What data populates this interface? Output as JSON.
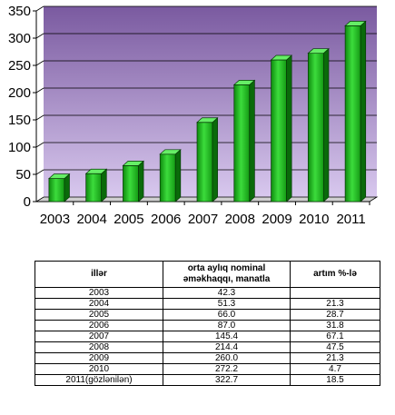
{
  "chart_data": {
    "type": "bar",
    "categories": [
      "2003",
      "2004",
      "2005",
      "2006",
      "2007",
      "2008",
      "2009",
      "2010",
      "2011"
    ],
    "values": [
      42.3,
      51.3,
      66.0,
      87.0,
      145.4,
      214.4,
      260.0,
      272.2,
      322.7
    ],
    "ylim": [
      0,
      350
    ],
    "yticks": [
      "0",
      "50",
      "100",
      "150",
      "200",
      "250",
      "300",
      "350"
    ],
    "grid": true,
    "colors": {
      "bar": "#22c022",
      "bar_top": "#66ee66",
      "bar_side": "#0a6a0a",
      "plot_bg_top": "#7a5aa0",
      "plot_bg_bottom": "#d8c8ee"
    }
  },
  "table": {
    "headers": [
      "illər",
      "orta aylıq nominal əməkhaqqı, manatla",
      "artım %-lə"
    ],
    "rows": [
      [
        "2003",
        "42.3",
        ""
      ],
      [
        "2004",
        "51.3",
        "21.3"
      ],
      [
        "2005",
        "66.0",
        "28.7"
      ],
      [
        "2006",
        "87.0",
        "31.8"
      ],
      [
        "2007",
        "145.4",
        "67.1"
      ],
      [
        "2008",
        "214.4",
        "47.5"
      ],
      [
        "2009",
        "260.0",
        "21.3"
      ],
      [
        "2010",
        "272.2",
        "4.7"
      ],
      [
        "2011(gözlənilən)",
        "322.7",
        "18.5"
      ]
    ]
  }
}
